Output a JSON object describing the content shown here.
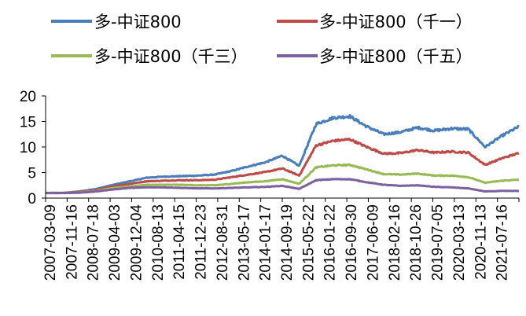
{
  "chart_data": {
    "type": "line",
    "title": "",
    "xlabel": "",
    "ylabel": "",
    "ylim": [
      0,
      20
    ],
    "yticks": [
      0,
      5,
      10,
      15,
      20
    ],
    "grid": false,
    "legend_position": "top",
    "x_tick_labels": [
      "2007-03-09",
      "2007-11-16",
      "2008-07-18",
      "2009-04-03",
      "2009-12-04",
      "2010-08-13",
      "2011-04-15",
      "2011-12-23",
      "2012-08-31",
      "2013-05-17",
      "2014-01-17",
      "2014-09-19",
      "2015-05-22",
      "2016-01-22",
      "2016-09-30",
      "2017-06-09",
      "2018-02-16",
      "2018-10-26",
      "2019-07-05",
      "2020-03-13",
      "2020-11-13",
      "2021-07-16"
    ],
    "series": [
      {
        "name": "多-中证800",
        "color": "#4a7ebb",
        "values": [
          1.0,
          1.0,
          1.3,
          1.8,
          2.6,
          3.3,
          4.0,
          4.2,
          4.3,
          4.4,
          4.6,
          5.3,
          6.2,
          7.0,
          8.3,
          6.3,
          14.5,
          15.7,
          16.0,
          14.0,
          12.5,
          12.9,
          13.8,
          13.2,
          13.6,
          13.5,
          10.0,
          12.2,
          14.0
        ]
      },
      {
        "name": "多-中证800（千一）",
        "color": "#be4b48",
        "values": [
          1.0,
          1.0,
          1.2,
          1.6,
          2.3,
          2.8,
          3.3,
          3.4,
          3.5,
          3.5,
          3.6,
          4.1,
          4.6,
          5.1,
          5.8,
          4.4,
          10.3,
          11.2,
          11.5,
          10.0,
          8.7,
          8.8,
          9.4,
          8.9,
          9.1,
          8.9,
          6.5,
          7.8,
          8.8
        ]
      },
      {
        "name": "多-中证800（千三）",
        "color": "#98b954",
        "values": [
          1.0,
          1.0,
          1.1,
          1.4,
          2.0,
          2.3,
          2.6,
          2.6,
          2.6,
          2.5,
          2.5,
          2.8,
          3.1,
          3.3,
          3.7,
          2.8,
          6.0,
          6.4,
          6.5,
          5.6,
          4.7,
          4.6,
          4.8,
          4.4,
          4.4,
          4.1,
          3.0,
          3.4,
          3.6
        ]
      },
      {
        "name": "多-中证800（千五）",
        "color": "#7d60a0",
        "values": [
          1.0,
          1.0,
          1.05,
          1.3,
          1.7,
          2.0,
          2.1,
          2.1,
          2.0,
          1.9,
          1.9,
          2.0,
          2.1,
          2.2,
          2.4,
          1.8,
          3.5,
          3.7,
          3.7,
          3.1,
          2.6,
          2.4,
          2.5,
          2.2,
          2.1,
          1.9,
          1.3,
          1.4,
          1.4
        ]
      }
    ]
  }
}
